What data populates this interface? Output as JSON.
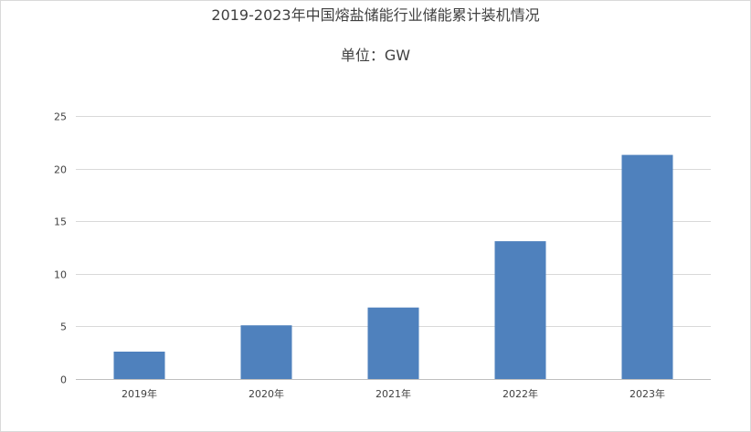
{
  "chart_data": {
    "type": "bar",
    "title": "2019-2023年中国熔盐储能行业储能累计装机情况",
    "subtitle": "单位：GW",
    "categories": [
      "2019年",
      "2020年",
      "2021年",
      "2022年",
      "2023年"
    ],
    "values": [
      2.6,
      5.1,
      6.8,
      13.1,
      21.3
    ],
    "ylim": [
      0,
      25
    ],
    "yticks": [
      0,
      5,
      10,
      15,
      20,
      25
    ],
    "ytick_labels": [
      "0",
      "5",
      "10",
      "15",
      "20",
      "25"
    ],
    "grid": true,
    "legend": "none",
    "xlabel": "",
    "ylabel": "",
    "colors": {
      "bar": "#4f81bd",
      "grid": "#d9d9d9",
      "axis": "#bfbfbf",
      "text": "#404040"
    }
  }
}
